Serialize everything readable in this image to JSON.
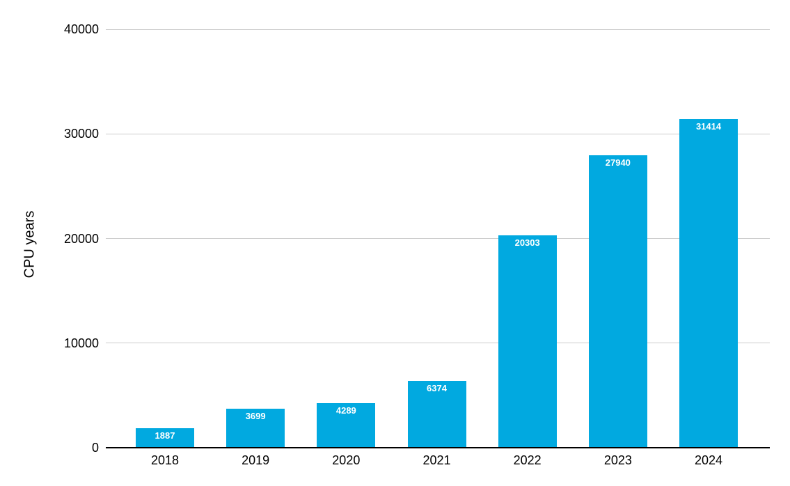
{
  "chart_data": {
    "type": "bar",
    "title": "",
    "categories": [
      "2018",
      "2019",
      "2020",
      "2021",
      "2022",
      "2023",
      "2024"
    ],
    "values": [
      1887,
      3699,
      4289,
      6374,
      20303,
      27940,
      31414
    ],
    "xlabel": "",
    "ylabel": "CPU years",
    "ylim": [
      0,
      40000
    ],
    "yticks": [
      0,
      10000,
      20000,
      30000,
      40000
    ],
    "grid": true,
    "legend_position": "none",
    "value_labels_visible": true,
    "colors": {
      "bar": "#01a9e0",
      "value_label": "#ffffff",
      "gridline": "#cccccc",
      "axis_line": "#000000",
      "tick_label": "#000000",
      "background": "#ffffff"
    }
  }
}
